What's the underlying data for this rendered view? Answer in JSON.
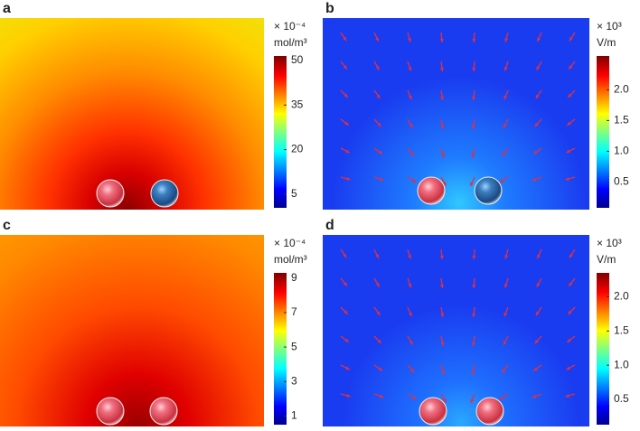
{
  "chart_data": [
    {
      "type": "heatmap",
      "label": "a",
      "scale": "× 10⁻⁴",
      "unit": "mol/m³",
      "clim": [
        0.4,
        51.5
      ],
      "cticks": [
        5,
        20,
        35,
        50
      ]
    },
    {
      "type": "heatmap",
      "label": "b",
      "scale": "× 10³",
      "unit": "V/m",
      "clim": [
        0.08,
        2.55
      ],
      "cticks": [
        0.5,
        {
          "value": 1.0,
          "label": "1.0"
        },
        1.5,
        {
          "value": 2.0,
          "label": "2.0"
        }
      ]
    },
    {
      "type": "heatmap",
      "label": "c",
      "scale": "× 10⁻⁴",
      "unit": "mol/m³",
      "clim": [
        0.5,
        9.3
      ],
      "cticks": [
        1,
        3,
        5,
        7,
        9
      ]
    },
    {
      "type": "heatmap",
      "label": "d",
      "scale": "× 10³",
      "unit": "V/m",
      "clim": [
        0.13,
        2.35
      ],
      "cticks": [
        0.5,
        {
          "value": 1.0,
          "label": "1.0"
        },
        1.5,
        {
          "value": 2.0,
          "label": "2.0"
        }
      ]
    }
  ]
}
